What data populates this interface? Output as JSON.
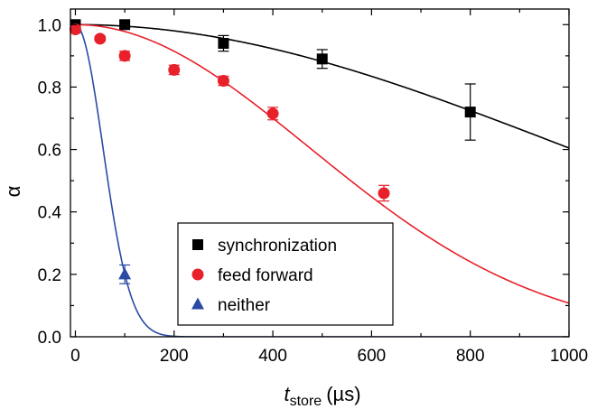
{
  "chart_data": {
    "type": "scatter",
    "xlabel": {
      "main": "t",
      "sub": "store",
      "unit": "(µs)"
    },
    "ylabel": "α",
    "xlim": [
      -10,
      1000
    ],
    "ylim": [
      0.0,
      1.05
    ],
    "xticks": [
      0,
      200,
      400,
      600,
      800,
      1000
    ],
    "yticks": [
      0.0,
      0.2,
      0.4,
      0.6,
      0.8,
      1.0
    ],
    "grid": false,
    "legend_position": "bottom-center",
    "series": [
      {
        "name": "synchronization",
        "marker": "square",
        "color": "#000000",
        "points": [
          {
            "x": 0,
            "y": 1.0,
            "err": 0.01
          },
          {
            "x": 100,
            "y": 1.0,
            "err": 0.01
          },
          {
            "x": 300,
            "y": 0.94,
            "err": 0.025
          },
          {
            "x": 500,
            "y": 0.89,
            "err": 0.03
          },
          {
            "x": 800,
            "y": 0.72,
            "err": 0.09
          }
        ],
        "fit": {
          "form": "gaussian",
          "tau": 1410
        }
      },
      {
        "name": "feed forward",
        "marker": "circle",
        "color": "#e8202a",
        "points": [
          {
            "x": 0,
            "y": 0.985,
            "err": 0.012
          },
          {
            "x": 50,
            "y": 0.955,
            "err": 0.008
          },
          {
            "x": 100,
            "y": 0.9,
            "err": 0.015
          },
          {
            "x": 200,
            "y": 0.855,
            "err": 0.015
          },
          {
            "x": 300,
            "y": 0.82,
            "err": 0.015
          },
          {
            "x": 400,
            "y": 0.715,
            "err": 0.02
          },
          {
            "x": 625,
            "y": 0.46,
            "err": 0.025
          }
        ],
        "fit": {
          "form": "gaussian",
          "tau": 670
        }
      },
      {
        "name": "neither",
        "marker": "triangle",
        "color": "#2b4aa5",
        "points": [
          {
            "x": 100,
            "y": 0.2,
            "err": 0.03
          }
        ],
        "fit": {
          "form": "gaussian",
          "tau": 79
        }
      }
    ]
  }
}
